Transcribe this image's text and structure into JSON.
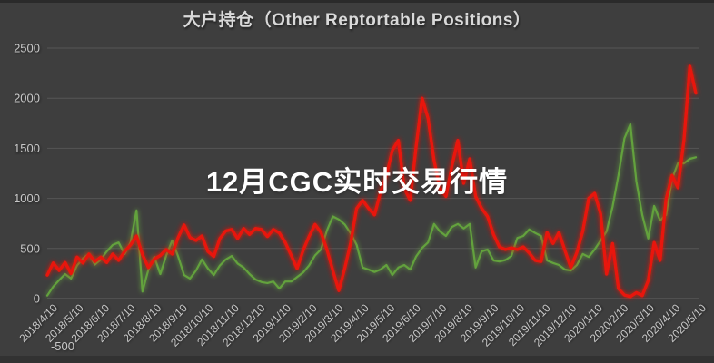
{
  "page": {
    "bg": "#3e3e3e",
    "top_strip": "#2a2a2a",
    "bottom_strip": "#323232"
  },
  "header": {
    "title": "大户持仓（Other Reptortable Positions）",
    "color": "#d9d9d9"
  },
  "banner": {
    "text": "12月CGC实时交易行情",
    "bg": "#d24030",
    "opacity": 0.82
  },
  "chart_data": {
    "type": "line",
    "title": "大户持仓（Other Reptortable Positions）",
    "xlabel": "",
    "ylabel": "",
    "ylim": [
      -500,
      2500
    ],
    "y_ticks": [
      -500,
      0,
      500,
      1000,
      1500,
      2000,
      2500
    ],
    "grid": true,
    "legend": "none",
    "colors": {
      "grid": "#565656",
      "zero_line": "#616161",
      "tick_label": "#c8c8c8"
    },
    "x_axis": {
      "rotation": -45,
      "tick_labels": [
        "2018/4/10",
        "2018/5/10",
        "2018/6/10",
        "2018/7/10",
        "2018/8/10",
        "2018/9/10",
        "2018/10/10",
        "2018/11/10",
        "2018/12/10",
        "2019/1/10",
        "2019/2/10",
        "2019/3/10",
        "2019/4/10",
        "2019/5/10",
        "2019/6/10",
        "2019/7/10",
        "2019/8/10",
        "2019/9/10",
        "2019/10/10",
        "2019/11/10",
        "2019/12/10",
        "2020/1/10",
        "2020/2/10",
        "2020/3/10",
        "2020/4/10",
        "2020/5/10"
      ]
    },
    "series": [
      {
        "name": "green-series",
        "color": "#63a23e",
        "stroke_width": 2.2,
        "values": [
          30,
          120,
          185,
          245,
          200,
          330,
          400,
          445,
          340,
          390,
          470,
          535,
          560,
          445,
          560,
          880,
          70,
          290,
          415,
          245,
          430,
          580,
          420,
          235,
          200,
          280,
          390,
          300,
          235,
          330,
          390,
          425,
          350,
          310,
          245,
          190,
          165,
          155,
          170,
          100,
          170,
          170,
          215,
          260,
          330,
          430,
          490,
          680,
          820,
          790,
          740,
          650,
          535,
          310,
          290,
          265,
          290,
          335,
          235,
          310,
          335,
          290,
          420,
          505,
          560,
          745,
          670,
          625,
          715,
          745,
          700,
          745,
          310,
          470,
          490,
          380,
          370,
          385,
          425,
          605,
          625,
          690,
          655,
          625,
          380,
          355,
          335,
          290,
          280,
          335,
          445,
          415,
          490,
          580,
          670,
          915,
          1230,
          1600,
          1740,
          1170,
          835,
          600,
          925,
          780,
          835,
          1195,
          1350,
          1350,
          1395,
          1410
        ]
      },
      {
        "name": "red-series",
        "color": "#e8140c",
        "stroke_width": 3.4,
        "values": [
          235,
          355,
          280,
          360,
          250,
          415,
          355,
          445,
          370,
          415,
          360,
          445,
          380,
          470,
          535,
          625,
          440,
          310,
          395,
          430,
          490,
          445,
          610,
          735,
          610,
          580,
          625,
          470,
          420,
          600,
          675,
          690,
          600,
          700,
          640,
          700,
          690,
          620,
          690,
          655,
          560,
          430,
          300,
          480,
          620,
          740,
          660,
          490,
          280,
          80,
          300,
          560,
          900,
          980,
          900,
          835,
          1060,
          1230,
          1480,
          1580,
          1100,
          980,
          1520,
          2000,
          1800,
          1380,
          1100,
          1020,
          1320,
          1580,
          1150,
          1395,
          1020,
          900,
          820,
          640,
          515,
          490,
          505,
          490,
          515,
          455,
          380,
          370,
          660,
          550,
          660,
          480,
          310,
          460,
          670,
          1000,
          1050,
          845,
          245,
          550,
          100,
          35,
          20,
          60,
          30,
          180,
          560,
          380,
          990,
          1230,
          1105,
          1580,
          2320,
          2050
        ]
      }
    ]
  }
}
